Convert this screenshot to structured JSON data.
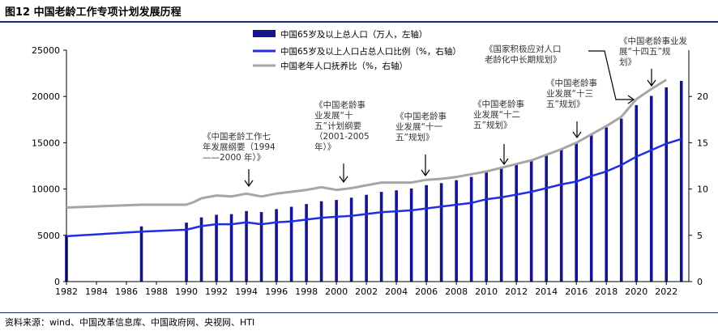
{
  "figure": {
    "title": "图12 中国老龄工作专项计划发展历程",
    "source": "资料来源：wind、中国改革信息库、中国政府网、央视网、HTI"
  },
  "colors": {
    "bar": "#14148c",
    "ratio_line": "#1f2de6",
    "dependency_line": "#a6a6a6"
  },
  "chart_data": {
    "type": "bar",
    "years": [
      1982,
      1987,
      1990,
      1991,
      1992,
      1993,
      1994,
      1995,
      1996,
      1997,
      1998,
      1999,
      2000,
      2001,
      2002,
      2003,
      2004,
      2005,
      2006,
      2007,
      2008,
      2009,
      2010,
      2011,
      2012,
      2013,
      2014,
      2015,
      2016,
      2017,
      2018,
      2019,
      2020,
      2021,
      2022,
      2023
    ],
    "x_ticks": [
      1982,
      1984,
      1986,
      1988,
      1990,
      1992,
      1994,
      1996,
      1998,
      2000,
      2002,
      2004,
      2006,
      2008,
      2010,
      2012,
      2014,
      2016,
      2018,
      2020,
      2022
    ],
    "xlim": [
      1982,
      2023.5
    ],
    "left_axis": {
      "ylim": [
        0,
        25000
      ],
      "ticks": [
        0,
        5000,
        10000,
        15000,
        20000,
        25000
      ]
    },
    "right_axis": {
      "ylim": [
        0,
        25
      ],
      "ticks": [
        0,
        5,
        10,
        15,
        20
      ]
    },
    "series": [
      {
        "name": "中国65岁及以上总人口（万人，左轴）",
        "type": "bar",
        "axis": "left",
        "values": [
          4990,
          5968,
          6368,
          6938,
          7218,
          7289,
          7622,
          7510,
          7833,
          8085,
          8375,
          8679,
          8821,
          9062,
          9377,
          9692,
          9857,
          10055,
          10419,
          10636,
          10956,
          11307,
          11894,
          12288,
          12714,
          13161,
          13755,
          14386,
          15003,
          15831,
          16658,
          17603,
          19064,
          20056,
          20978,
          21676
        ]
      },
      {
        "name": "中国65岁及以上人口占总人口比例（%，右轴）",
        "type": "line",
        "axis": "right",
        "points": [
          [
            1982,
            4.9
          ],
          [
            1987,
            5.4
          ],
          [
            1990,
            5.6
          ],
          [
            1991,
            6.0
          ],
          [
            1992,
            6.2
          ],
          [
            1993,
            6.2
          ],
          [
            1994,
            6.4
          ],
          [
            1995,
            6.2
          ],
          [
            1996,
            6.4
          ],
          [
            1997,
            6.5
          ],
          [
            1998,
            6.7
          ],
          [
            1999,
            6.9
          ],
          [
            2000,
            7.0
          ],
          [
            2001,
            7.1
          ],
          [
            2002,
            7.3
          ],
          [
            2003,
            7.5
          ],
          [
            2004,
            7.6
          ],
          [
            2005,
            7.7
          ],
          [
            2006,
            7.9
          ],
          [
            2007,
            8.1
          ],
          [
            2008,
            8.3
          ],
          [
            2009,
            8.5
          ],
          [
            2010,
            8.9
          ],
          [
            2011,
            9.1
          ],
          [
            2012,
            9.4
          ],
          [
            2013,
            9.7
          ],
          [
            2014,
            10.1
          ],
          [
            2015,
            10.5
          ],
          [
            2016,
            10.8
          ],
          [
            2017,
            11.4
          ],
          [
            2018,
            11.9
          ],
          [
            2019,
            12.6
          ],
          [
            2020,
            13.5
          ],
          [
            2021,
            14.2
          ],
          [
            2022,
            14.9
          ],
          [
            2023,
            15.4
          ]
        ]
      },
      {
        "name": "中国老年人口抚养比（%，右轴）",
        "type": "line",
        "axis": "right",
        "points": [
          [
            1982,
            8.0
          ],
          [
            1987,
            8.3
          ],
          [
            1990,
            8.3
          ],
          [
            1990.5,
            8.6
          ],
          [
            1991,
            9.0
          ],
          [
            1992,
            9.3
          ],
          [
            1993,
            9.2
          ],
          [
            1994,
            9.5
          ],
          [
            1995,
            9.2
          ],
          [
            1996,
            9.5
          ],
          [
            1997,
            9.7
          ],
          [
            1998,
            9.9
          ],
          [
            1999,
            10.2
          ],
          [
            2000,
            9.9
          ],
          [
            2001,
            10.1
          ],
          [
            2002,
            10.4
          ],
          [
            2003,
            10.7
          ],
          [
            2004,
            10.7
          ],
          [
            2005,
            10.7
          ],
          [
            2006,
            11.0
          ],
          [
            2007,
            11.1
          ],
          [
            2008,
            11.3
          ],
          [
            2009,
            11.6
          ],
          [
            2010,
            11.9
          ],
          [
            2011,
            12.3
          ],
          [
            2012,
            12.7
          ],
          [
            2013,
            13.1
          ],
          [
            2014,
            13.7
          ],
          [
            2015,
            14.3
          ],
          [
            2016,
            15.0
          ],
          [
            2017,
            15.9
          ],
          [
            2018,
            16.8
          ],
          [
            2019,
            17.8
          ],
          [
            2020,
            19.7
          ],
          [
            2021,
            20.8
          ],
          [
            2022,
            21.8
          ]
        ]
      }
    ],
    "annotations": [
      {
        "name": "annotation-1994",
        "lines": [
          "《中国老龄工作七",
          "年发展纲要（1994",
          "——2000 年）》"
        ],
        "arrow_year": 1994
      },
      {
        "name": "annotation-10th-plan",
        "lines": [
          "《中国老龄事",
          "业发展“十",
          "五”计划纲要",
          "（2001-2005",
          "年）》"
        ],
        "arrow_year": 2000.6
      },
      {
        "name": "annotation-11th-plan",
        "lines": [
          "《中国老龄事",
          "业发展“十一",
          "五”规划》"
        ],
        "arrow_year": 2006
      },
      {
        "name": "annotation-12th-plan",
        "lines": [
          "《中国老龄事",
          "业发展“十二",
          "五”规划》"
        ],
        "arrow_year": 2011
      },
      {
        "name": "annotation-13th-plan",
        "lines": [
          "《中国老龄事",
          "业发展“十三",
          "五”规划》"
        ],
        "arrow_year": 2016
      },
      {
        "name": "annotation-long-term",
        "lines": [
          "《国家积极应对人口",
          "老龄化中长期规划》"
        ],
        "arrow_year": 2019.5
      },
      {
        "name": "annotation-14th-plan",
        "lines": [
          "《中国老龄事业发",
          "展“十四五”规",
          "划》"
        ],
        "arrow_year": 2021
      }
    ]
  }
}
